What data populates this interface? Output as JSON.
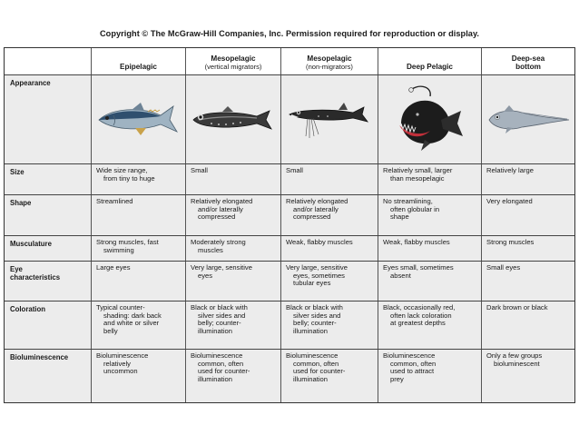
{
  "copyright": "Copyright © The McGraw-Hill Companies, Inc. Permission required for reproduction or display.",
  "columns": [
    {
      "name": "Epipelagic",
      "sub": ""
    },
    {
      "name": "Mesopelagic",
      "sub": "(vertical migrators)"
    },
    {
      "name": "Mesopelagic",
      "sub": "(non-migrators)"
    },
    {
      "name": "Deep Pelagic",
      "sub": ""
    },
    {
      "name": "Deep-sea",
      "sub": "bottom"
    }
  ],
  "rows": {
    "appearance": {
      "label": "Appearance"
    },
    "size": {
      "label": "Size",
      "values": [
        [
          "Wide size range,",
          "from tiny to huge"
        ],
        [
          "Small"
        ],
        [
          "Small"
        ],
        [
          "Relatively small, larger",
          "than mesopelagic"
        ],
        [
          "Relatively large"
        ]
      ]
    },
    "shape": {
      "label": "Shape",
      "values": [
        [
          "Streamlined"
        ],
        [
          "Relatively elongated",
          "and/or laterally",
          "compressed"
        ],
        [
          "Relatively elongated",
          "and/or laterally",
          "compressed"
        ],
        [
          "No streamlining,",
          "often globular in",
          "shape"
        ],
        [
          "Very elongated"
        ]
      ]
    },
    "musculature": {
      "label": "Musculature",
      "values": [
        [
          "Strong muscles, fast",
          "swimming"
        ],
        [
          "Moderately strong",
          "muscles"
        ],
        [
          "Weak, flabby muscles"
        ],
        [
          "Weak, flabby muscles"
        ],
        [
          "Strong muscles"
        ]
      ]
    },
    "eye": {
      "label_1": "Eye",
      "label_2": "characteristics",
      "values": [
        [
          "Large eyes"
        ],
        [
          "Very large, sensitive",
          "eyes"
        ],
        [
          "Very large, sensitive",
          "eyes, sometimes",
          "tubular eyes"
        ],
        [
          "Eyes small, sometimes",
          "absent"
        ],
        [
          "Small eyes"
        ]
      ]
    },
    "coloration": {
      "label": "Coloration",
      "values": [
        [
          "Typical counter-",
          "shading: dark back",
          "and white or silver",
          "belly"
        ],
        [
          "Black or black with",
          "silver sides and",
          "belly; counter-",
          "illumination"
        ],
        [
          "Black or black with",
          "silver sides and",
          "belly; counter-",
          "illumination"
        ],
        [
          "Black, occasionally red,",
          "often lack coloration",
          "at greatest depths"
        ],
        [
          "Dark brown or black"
        ]
      ]
    },
    "bioluminescence": {
      "label": "Bioluminescence",
      "values": [
        [
          "Bioluminescence",
          "relatively",
          "uncommon"
        ],
        [
          "Bioluminescence",
          "common, often",
          "used for counter-",
          "illumination"
        ],
        [
          "Bioluminescence",
          "common, often",
          "used for counter-",
          "illumination"
        ],
        [
          "Bioluminescence",
          "common, often",
          "used to attract",
          "prey"
        ],
        [
          "Only a few groups",
          "bioluminescent"
        ]
      ]
    }
  },
  "illustrations": [
    "tuna-fish",
    "lanternfish",
    "dragonfish",
    "anglerfish",
    "rattail-fish"
  ],
  "colors": {
    "row_bg": "#ececec",
    "border": "#444444",
    "text": "#1a1a1a"
  }
}
